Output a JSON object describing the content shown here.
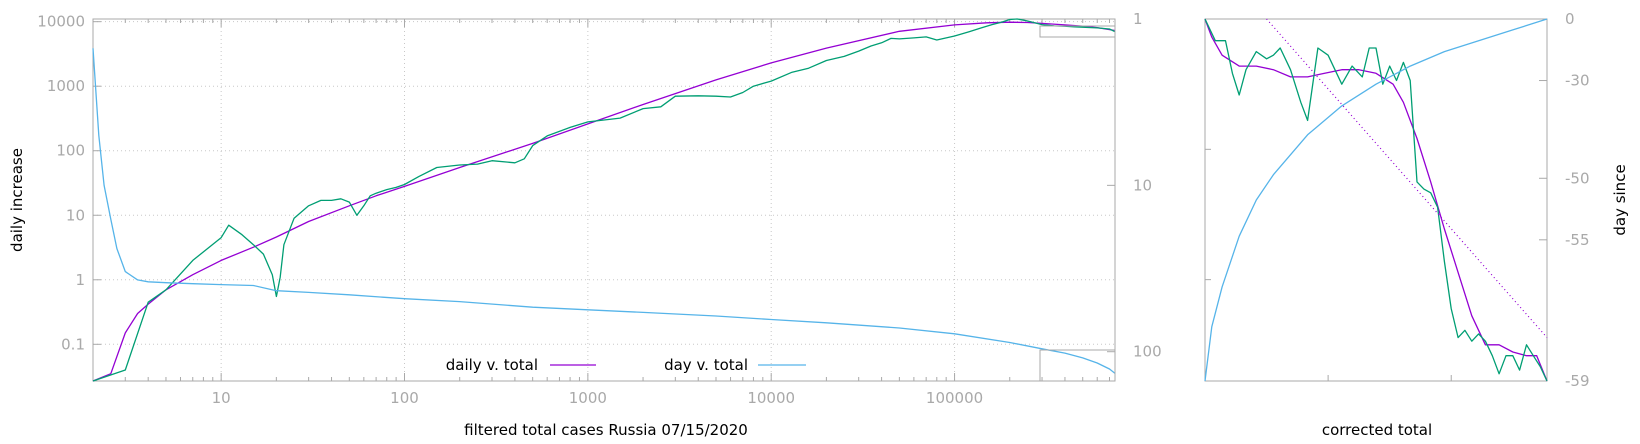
{
  "chart_data": [
    {
      "type": "line",
      "xlabel": "filtered total cases Russia 07/15/2020",
      "ylabel": "daily increase",
      "y2label": "",
      "x_scale": "log",
      "y_scale": "log",
      "y2_scale": "log",
      "y2_reversed": true,
      "grid": true,
      "legend_position": "bottom-center",
      "xlim": [
        2,
        750000
      ],
      "ylim": [
        0.027,
        11000
      ],
      "y2lim": [
        1,
        150
      ],
      "x_ticks": [
        "10",
        "100",
        "1000",
        "10000",
        "100000"
      ],
      "y_ticks": [
        "0.1",
        "1",
        "10",
        "100",
        "1000",
        "10000"
      ],
      "y2_ticks": [
        "1",
        "10",
        "100"
      ],
      "series": [
        {
          "name": "daily v. total",
          "color": "#9400d3",
          "axis": "y",
          "x": [
            2,
            2.5,
            3,
            3.5,
            4,
            5,
            7,
            10,
            15,
            20,
            30,
            50,
            70,
            100,
            200,
            500,
            1000,
            2000,
            5000,
            10000,
            20000,
            50000,
            100000,
            150000,
            200000,
            250000,
            300000,
            400000,
            500000,
            600000,
            750000
          ],
          "values": [
            0.027,
            0.035,
            0.15,
            0.3,
            0.42,
            0.7,
            1.2,
            2,
            3.2,
            4.6,
            8,
            14,
            20,
            28,
            55,
            130,
            260,
            520,
            1250,
            2300,
            3900,
            7100,
            8900,
            9600,
            9800,
            9700,
            9400,
            8900,
            8500,
            8100,
            7300
          ]
        },
        {
          "name": "",
          "color": "#009e73",
          "axis": "y",
          "x": [
            2,
            3,
            4,
            5,
            7,
            10,
            11,
            13,
            15,
            17,
            19,
            20,
            21,
            22,
            25,
            30,
            35,
            40,
            45,
            50,
            55,
            60,
            65,
            70,
            80,
            90,
            100,
            120,
            150,
            200,
            250,
            300,
            400,
            450,
            500,
            600,
            800,
            1000,
            1500,
            2000,
            2500,
            3000,
            4000,
            5000,
            6000,
            7000,
            8000,
            10000,
            13000,
            16000,
            20000,
            25000,
            30000,
            35000,
            40000,
            45000,
            50000,
            60000,
            70000,
            80000,
            100000,
            120000,
            140000,
            160000,
            180000,
            200000,
            220000,
            240000,
            260000,
            300000,
            350000,
            400000,
            450000,
            500000,
            600000,
            700000,
            750000
          ],
          "values": [
            0.027,
            0.04,
            0.45,
            0.7,
            2,
            4.5,
            7,
            5,
            3.5,
            2.5,
            1.2,
            0.55,
            1.1,
            3.5,
            9,
            14,
            17,
            17,
            18,
            16,
            10,
            14,
            20,
            22,
            25,
            27,
            30,
            40,
            55,
            60,
            62,
            70,
            65,
            75,
            120,
            170,
            230,
            280,
            320,
            450,
            480,
            700,
            710,
            700,
            680,
            800,
            1000,
            1200,
            1650,
            1900,
            2500,
            2900,
            3500,
            4200,
            4700,
            5500,
            5400,
            5600,
            5800,
            5200,
            6000,
            7000,
            8000,
            9000,
            9800,
            10800,
            11000,
            10500,
            10000,
            9000,
            8600,
            8500,
            8300,
            8200,
            8000,
            7700,
            7000
          ]
        },
        {
          "name": "day v. total",
          "color": "#56b4e9",
          "axis": "y2",
          "x": [
            2,
            2.15,
            2.3,
            2.5,
            2.7,
            3,
            3.5,
            4,
            5,
            7,
            10,
            15,
            20,
            30,
            50,
            100,
            200,
            500,
            1000,
            2000,
            5000,
            10000,
            20000,
            50000,
            100000,
            200000,
            300000,
            400000,
            500000,
            600000,
            700000,
            750000
          ],
          "values": [
            1.5,
            5,
            10,
            16,
            24,
            33,
            37,
            38,
            38.5,
            39,
            39.5,
            40,
            43,
            44,
            45.5,
            48,
            50,
            54,
            56,
            58,
            61,
            64,
            67,
            72,
            78,
            88,
            96,
            102,
            109,
            117,
            127,
            135
          ]
        }
      ],
      "legend": [
        {
          "label": "daily v. total",
          "color": "#9400d3"
        },
        {
          "label": "day v. total",
          "color": "#56b4e9"
        }
      ]
    },
    {
      "type": "line",
      "xlabel": "corrected total",
      "ylabel": "",
      "y2label": "day since",
      "y2_ticks": [
        "0",
        "-30",
        "-50",
        "-55",
        "-59"
      ],
      "y2_ticks_values": [
        0,
        -30,
        -50,
        -55,
        -59
      ],
      "series": [
        {
          "name": "",
          "color": "#9400d3",
          "axis": "y",
          "x": [
            0,
            0.02,
            0.05,
            0.1,
            0.15,
            0.2,
            0.25,
            0.3,
            0.35,
            0.4,
            0.45,
            0.5,
            0.55,
            0.58,
            0.62,
            0.66,
            0.7,
            0.74,
            0.78,
            0.82,
            0.86,
            0.9,
            0.94,
            0.97,
            1.0
          ],
          "values": [
            1,
            0.95,
            0.9,
            0.87,
            0.87,
            0.86,
            0.84,
            0.84,
            0.85,
            0.86,
            0.86,
            0.85,
            0.82,
            0.77,
            0.67,
            0.55,
            0.42,
            0.3,
            0.18,
            0.1,
            0.1,
            0.08,
            0.07,
            0.07,
            0
          ]
        },
        {
          "name": "",
          "color": "#009e73",
          "axis": "y",
          "x": [
            0,
            0.03,
            0.06,
            0.08,
            0.1,
            0.12,
            0.15,
            0.18,
            0.2,
            0.22,
            0.25,
            0.28,
            0.3,
            0.33,
            0.36,
            0.4,
            0.43,
            0.46,
            0.48,
            0.5,
            0.52,
            0.54,
            0.56,
            0.58,
            0.6,
            0.62,
            0.64,
            0.66,
            0.68,
            0.7,
            0.72,
            0.74,
            0.76,
            0.78,
            0.8,
            0.82,
            0.84,
            0.86,
            0.88,
            0.9,
            0.92,
            0.94,
            0.96,
            0.98,
            1.0
          ],
          "values": [
            1,
            0.94,
            0.94,
            0.85,
            0.79,
            0.86,
            0.91,
            0.89,
            0.9,
            0.92,
            0.86,
            0.77,
            0.72,
            0.92,
            0.9,
            0.82,
            0.87,
            0.84,
            0.92,
            0.92,
            0.82,
            0.87,
            0.83,
            0.88,
            0.83,
            0.55,
            0.53,
            0.52,
            0.48,
            0.33,
            0.2,
            0.12,
            0.14,
            0.11,
            0.13,
            0.11,
            0.07,
            0.02,
            0.07,
            0.07,
            0.03,
            0.1,
            0.07,
            0.04,
            0
          ]
        },
        {
          "name": "",
          "color": "#56b4e9",
          "axis": "y",
          "x": [
            0,
            0.02,
            0.05,
            0.1,
            0.15,
            0.2,
            0.3,
            0.4,
            0.5,
            0.6,
            0.7,
            0.8,
            0.9,
            1.0
          ],
          "values": [
            0,
            0.15,
            0.26,
            0.4,
            0.5,
            0.57,
            0.68,
            0.76,
            0.82,
            0.87,
            0.91,
            0.94,
            0.97,
            1
          ]
        },
        {
          "name": "",
          "color": "#9400d3",
          "style": "dotted",
          "axis": "y",
          "x": [
            0.18,
            1.0
          ],
          "values": [
            1.0,
            0.12
          ]
        }
      ]
    }
  ]
}
